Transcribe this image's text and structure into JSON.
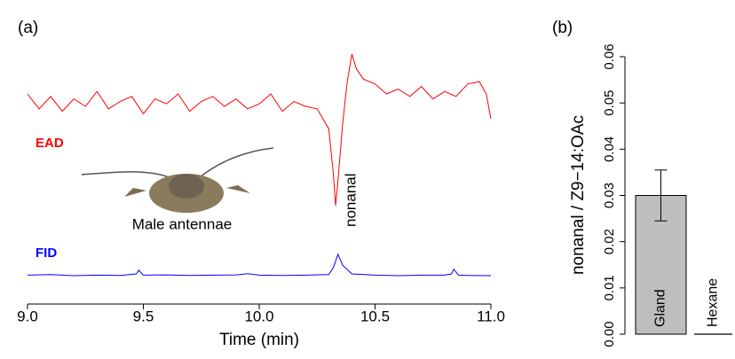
{
  "chart_data": [
    {
      "type": "line",
      "panel_label": "(a)",
      "xlabel": "Time (min)",
      "xlim": [
        9.0,
        11.0
      ],
      "xticks": [
        {
          "value": 9,
          "label": "9.0"
        },
        9.5,
        {
          "value": 10,
          "label": "10.0"
        },
        10.5,
        {
          "value": 11,
          "label": "11.0"
        }
      ],
      "ylim": [
        0,
        100
      ],
      "annotations": [
        "Male antennae",
        "nonanal"
      ],
      "series": [
        {
          "name": "EAD",
          "color": "#ff0000",
          "x": [
            9.0,
            9.05,
            9.1,
            9.15,
            9.2,
            9.25,
            9.3,
            9.35,
            9.4,
            9.45,
            9.5,
            9.55,
            9.6,
            9.65,
            9.7,
            9.75,
            9.8,
            9.85,
            9.9,
            9.95,
            10.0,
            10.05,
            10.1,
            10.15,
            10.2,
            10.25,
            10.3,
            10.32,
            10.33,
            10.34,
            10.36,
            10.38,
            10.4,
            10.42,
            10.45,
            10.5,
            10.55,
            10.6,
            10.65,
            10.7,
            10.75,
            10.8,
            10.85,
            10.9,
            10.95,
            10.98,
            11.0
          ],
          "values": [
            80,
            74,
            79,
            73,
            78,
            75,
            81,
            74,
            77,
            79,
            72,
            78,
            76,
            80,
            73,
            77,
            79,
            75,
            78,
            74,
            76,
            80,
            73,
            77,
            75,
            74,
            66,
            48,
            35,
            45,
            68,
            85,
            96,
            90,
            86,
            84,
            80,
            82,
            79,
            83,
            78,
            81,
            79,
            84,
            85,
            80,
            70
          ]
        },
        {
          "name": "FID",
          "color": "#0000ff",
          "x": [
            9.0,
            9.1,
            9.2,
            9.3,
            9.4,
            9.47,
            9.48,
            9.5,
            9.6,
            9.7,
            9.8,
            9.9,
            9.95,
            10.0,
            10.1,
            10.2,
            10.3,
            10.32,
            10.34,
            10.36,
            10.4,
            10.5,
            10.6,
            10.7,
            10.8,
            10.83,
            10.84,
            10.86,
            10.9,
            11.0
          ],
          "values": [
            7,
            7.2,
            6.8,
            7,
            6.9,
            7.5,
            9,
            7,
            7.1,
            6.9,
            7,
            7.1,
            7.6,
            7,
            6.9,
            7,
            7.2,
            10,
            15.4,
            11,
            7.5,
            7,
            6.8,
            7,
            7,
            7.5,
            9.4,
            7,
            6.9,
            6.8
          ]
        }
      ]
    },
    {
      "type": "bar",
      "panel_label": "(b)",
      "ylabel": "nonanal / Z9−14:OAc",
      "categories": [
        "Gland",
        "Hexane"
      ],
      "values": [
        0.03,
        0
      ],
      "errors": [
        0.0055,
        null
      ],
      "color": "#bebebe",
      "ylim": [
        0,
        0.06
      ],
      "yticks": [
        {
          "value": 0,
          "label": "0.00"
        },
        0.01,
        0.02,
        0.03,
        0.04,
        0.05,
        0.06
      ]
    }
  ]
}
